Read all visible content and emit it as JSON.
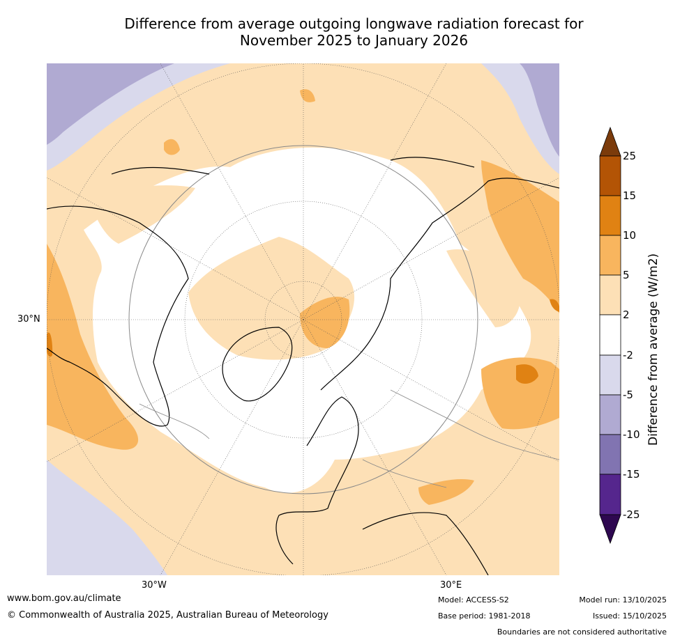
{
  "title": {
    "line1": "Difference from average outgoing longwave radiation forecast for",
    "line2": "November 2025 to January 2026"
  },
  "map": {
    "projection": "north-polar-stereographic",
    "gridline_labels": {
      "lat_30n": "30°N",
      "lon_30w": "30°W",
      "lon_30e": "30°E"
    }
  },
  "colorbar": {
    "title": "Difference from average (W/m2)",
    "ticks": [
      "25",
      "15",
      "10",
      "5",
      "2",
      "-2",
      "-5",
      "-10",
      "-15",
      "-25"
    ],
    "colors": {
      "over": "#7b3b0b",
      "15_25": "#b35405",
      "10_15": "#e08213",
      "5_10": "#f8b55e",
      "2_5": "#fde0b6",
      "neg2_2": "#ffffff",
      "neg5_neg2": "#d9d9ec",
      "neg10_neg5": "#b0aad2",
      "neg15_neg10": "#8174b1",
      "neg25_neg15": "#55268d",
      "under": "#2e0850"
    }
  },
  "footer": {
    "website": "www.bom.gov.au/climate",
    "copyright": "© Commonwealth of Australia 2025, Australian Bureau of Meteorology",
    "model": "Model: ACCESS-S2",
    "base_period": "Base period: 1981-2018",
    "model_run": "Model run: 13/10/2025",
    "issued": "Issued: 15/10/2025",
    "disclaimer": "Boundaries are not considered authoritative"
  }
}
